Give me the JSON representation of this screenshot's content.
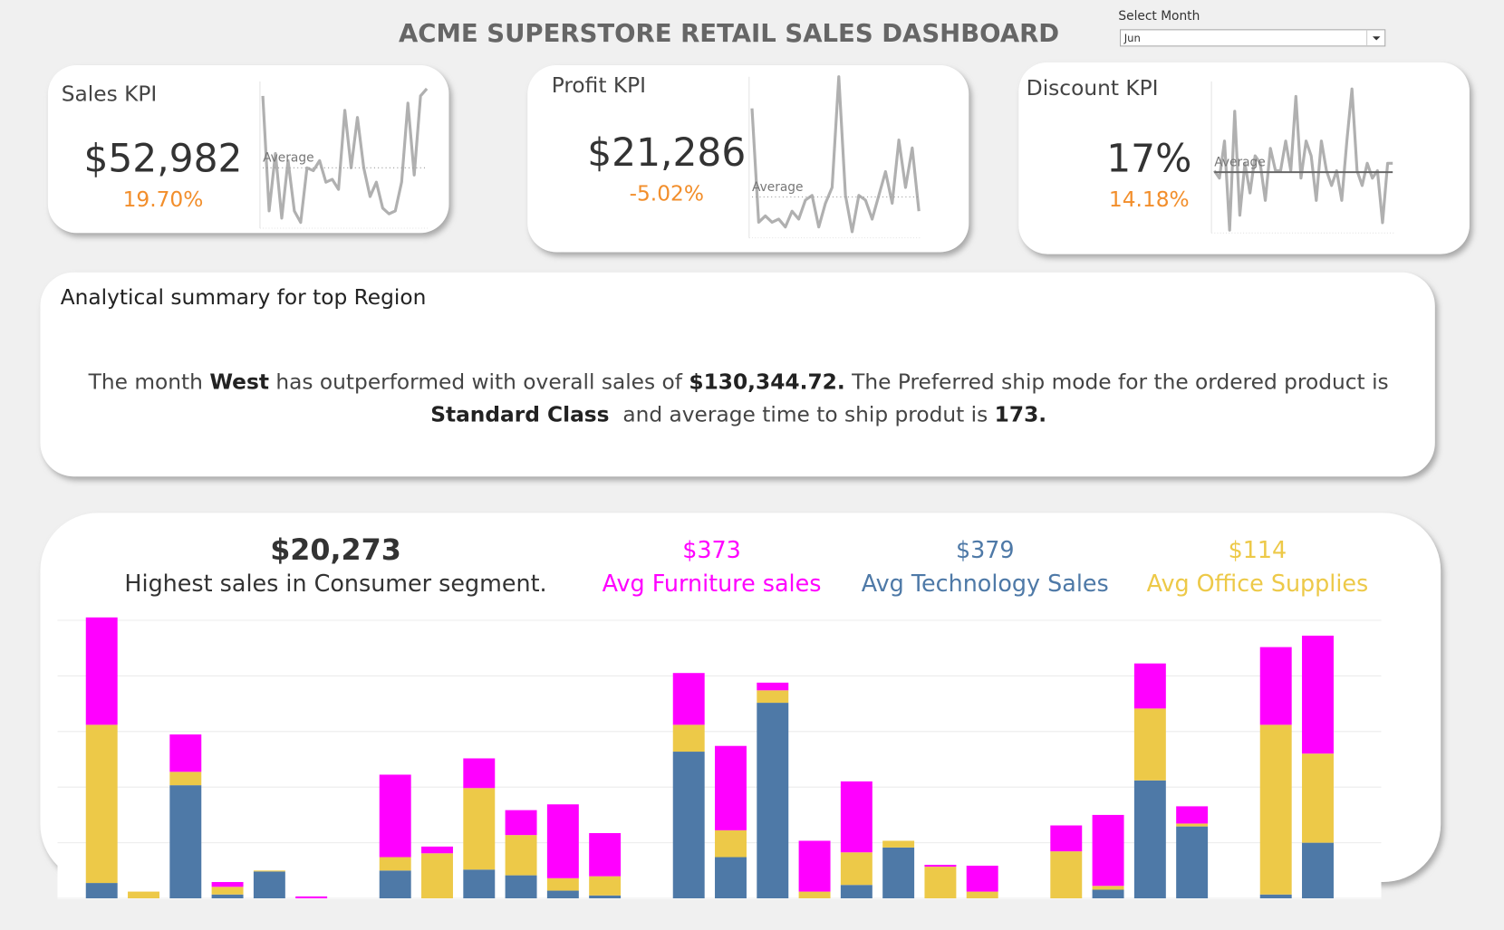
{
  "header": {
    "title": "ACME SUPERSTORE RETAIL SALES DASHBOARD",
    "filter_label": "Select Month",
    "filter_value": "Jun"
  },
  "kpis": [
    {
      "title": "Sales KPI",
      "value": "$52,982",
      "change": "19.70%",
      "average_label": "Average",
      "spark": {
        "type": "line",
        "ylim": [
          0,
          100
        ],
        "average": 40,
        "average_style": "dotted",
        "values": [
          90,
          10,
          50,
          5,
          45,
          10,
          2,
          40,
          38,
          45,
          30,
          32,
          25,
          80,
          40,
          75,
          40,
          20,
          30,
          12,
          8,
          10,
          30,
          85,
          35,
          90,
          95
        ]
      }
    },
    {
      "title": "Profit KPI",
      "value": "$21,286",
      "change": "-5.02%",
      "average_label": "Average",
      "spark": {
        "type": "line",
        "ylim": [
          0,
          100
        ],
        "average": 24,
        "average_style": "dotted",
        "values": [
          80,
          8,
          12,
          8,
          10,
          5,
          15,
          10,
          22,
          25,
          5,
          20,
          30,
          100,
          25,
          2,
          25,
          22,
          10,
          25,
          40,
          20,
          60,
          30,
          55,
          15
        ]
      }
    },
    {
      "title": "Discount KPI",
      "value": "17%",
      "change": "14.18%",
      "average_label": "Average",
      "spark": {
        "type": "line",
        "ylim": [
          0,
          100
        ],
        "average": 39,
        "average_style": "solid",
        "values": [
          40,
          35,
          60,
          0,
          80,
          10,
          45,
          25,
          50,
          45,
          20,
          55,
          40,
          40,
          60,
          40,
          90,
          35,
          60,
          50,
          20,
          60,
          40,
          30,
          40,
          20,
          60,
          95,
          40,
          30,
          45,
          35,
          40,
          5,
          45,
          45
        ]
      }
    }
  ],
  "summary": {
    "title": "Analytical summary for top Region",
    "line1": [
      "The month ",
      "West",
      " has outperformed with overall sales of ",
      "$130,344.72.",
      " The Preferred ship mode for the ordered product is"
    ],
    "line2": [
      "Standard Class",
      "  and average time to ship produt is ",
      "173."
    ]
  },
  "highlights": [
    {
      "value": "$20,273",
      "label": "Highest sales in Consumer segment.",
      "color": "#333333"
    },
    {
      "value": "$373",
      "label": "Avg Furniture sales",
      "color": "#ff00ff"
    },
    {
      "value": "$379",
      "label": "Avg Technology Sales",
      "color": "#4e79a7"
    },
    {
      "value": "$114",
      "label": "Avg Office Supplies",
      "color": "#edc948"
    }
  ],
  "chart_data": {
    "type": "bar",
    "stacked": true,
    "grid": true,
    "categories": [
      null,
      null,
      null,
      null,
      null,
      null,
      null,
      null,
      null,
      null,
      null,
      null,
      null,
      null,
      null,
      null,
      null,
      null,
      null,
      null,
      null,
      null,
      null,
      null,
      null,
      null,
      null,
      null,
      null,
      null
    ],
    "ylim": [
      0,
      5100
    ],
    "yticks": [
      0,
      1000,
      2000,
      3000,
      4000,
      5000
    ],
    "series": [
      {
        "color": "#4e79a7",
        "values": [
          276,
          0,
          2034,
          69,
          483,
          0,
          0,
          500,
          0,
          517,
          414,
          138,
          52,
          0,
          2638,
          741,
          3517,
          0,
          241,
          914,
          0,
          0,
          0,
          0,
          155,
          2121,
          1293,
          0,
          69,
          1000
        ]
      },
      {
        "color": "#edc948",
        "values": [
          2845,
          121,
          241,
          138,
          17,
          0,
          0,
          241,
          810,
          1466,
          724,
          224,
          345,
          0,
          483,
          483,
          224,
          121,
          586,
          121,
          569,
          121,
          0,
          845,
          69,
          1293,
          52,
          0,
          3052,
          1603
        ]
      },
      {
        "color": "#ff00ff",
        "values": [
          1931,
          0,
          672,
          86,
          0,
          34,
          0,
          1483,
          121,
          534,
          448,
          1328,
          776,
          0,
          931,
          1517,
          138,
          914,
          1276,
          0,
          34,
          466,
          0,
          466,
          1276,
          810,
          310,
          0,
          1397,
          2121
        ]
      }
    ]
  }
}
